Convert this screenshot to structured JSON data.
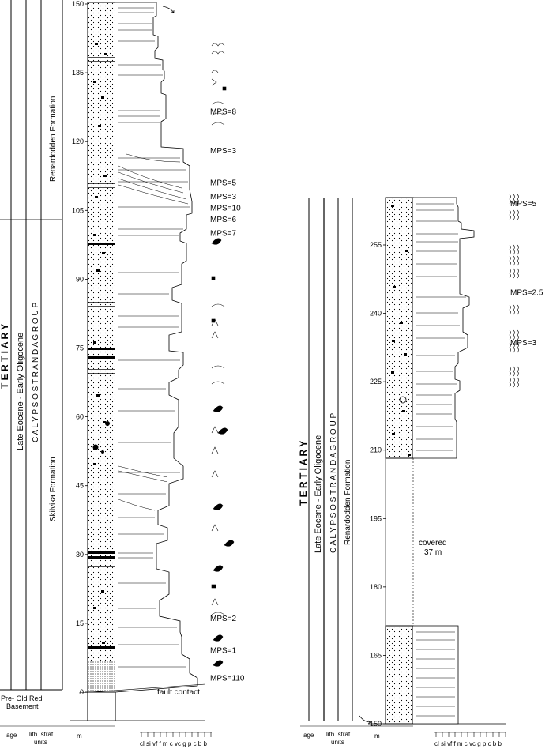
{
  "left_column": {
    "era": "T E R T I A R Y",
    "epoch": "Late Eocene - Early Oligocene",
    "group": "C A L Y P S O S T R A N D A   G R O U P",
    "formation_upper": "Renardodden Formation",
    "formation_lower": "Skilvika Formation",
    "basement": [
      "Pre- Old Red",
      "Basement"
    ],
    "depth_ticks": [
      {
        "label": "150",
        "value": 150
      },
      {
        "label": "135",
        "value": 135
      },
      {
        "label": "120",
        "value": 120
      },
      {
        "label": "105",
        "value": 105
      },
      {
        "label": "90",
        "value": 90
      },
      {
        "label": "75",
        "value": 75
      },
      {
        "label": "60",
        "value": 60
      },
      {
        "label": "45",
        "value": 45
      },
      {
        "label": "30",
        "value": 30
      },
      {
        "label": "15",
        "value": 15
      },
      {
        "label": "0",
        "value": 0
      }
    ],
    "mps_labels": [
      {
        "text": "MPS=8",
        "value": 126.5
      },
      {
        "text": "MPS=3",
        "value": 118
      },
      {
        "text": "MPS=5",
        "value": 111
      },
      {
        "text": "MPS=3",
        "value": 108
      },
      {
        "text": "MPS=10",
        "value": 105.5
      },
      {
        "text": "MPS=6",
        "value": 103
      },
      {
        "text": "MPS=7",
        "value": 100
      },
      {
        "text": "MPS=2",
        "value": 16
      },
      {
        "text": "MPS=1",
        "value": 9
      },
      {
        "text": "MPS=110",
        "value": 3
      }
    ],
    "fault_label": "fault contact"
  },
  "right_column": {
    "era": "T E R T I A R Y",
    "epoch": "Late Eocene - Early Oligocene",
    "group": "C A L Y P S O S T R A N D A   G R O U P",
    "formation": "Renardodden Formation",
    "depth_ticks": [
      {
        "label": "255",
        "value": 255
      },
      {
        "label": "240",
        "value": 240
      },
      {
        "label": "225",
        "value": 225
      },
      {
        "label": "210",
        "value": 210
      },
      {
        "label": "195",
        "value": 195
      },
      {
        "label": "180",
        "value": 180
      },
      {
        "label": "165",
        "value": 165
      },
      {
        "label": "150",
        "value": 150
      }
    ],
    "mps_labels": [
      {
        "text": "MPS=5",
        "value": 264
      },
      {
        "text": "MPS=2.5",
        "value": 244.5
      },
      {
        "text": "MPS=3",
        "value": 233.5
      }
    ],
    "covered_label": [
      "covered",
      "37 m"
    ]
  },
  "footer": {
    "age": "age",
    "lith_strat": [
      "lith. strat.",
      "units"
    ],
    "unit": "m",
    "grain_scale": "cl si vf  f  m c vc g  p c b b"
  }
}
